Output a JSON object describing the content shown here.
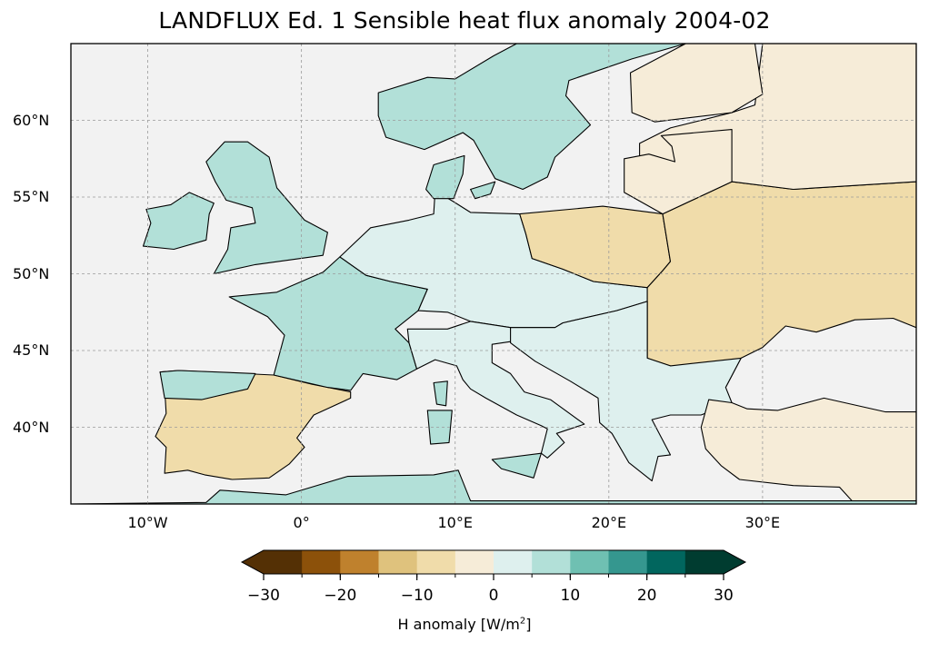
{
  "title": "LANDFLUX Ed. 1 Sensible heat flux anomaly 2004-02",
  "map": {
    "projection": "PlateCarree",
    "lon_range": [
      -15,
      40
    ],
    "lat_range": [
      35,
      65
    ],
    "gridlines": true,
    "ocean_color": "#f2f2f2",
    "coastlines": true,
    "borders": true
  },
  "axes": {
    "x_ticks": [
      {
        "value": -10,
        "label": "10°W"
      },
      {
        "value": 0,
        "label": "0°"
      },
      {
        "value": 10,
        "label": "10°E"
      },
      {
        "value": 20,
        "label": "20°E"
      },
      {
        "value": 30,
        "label": "30°E"
      }
    ],
    "y_ticks": [
      {
        "value": 60,
        "label": "60°N"
      },
      {
        "value": 55,
        "label": "55°N"
      },
      {
        "value": 50,
        "label": "50°N"
      },
      {
        "value": 45,
        "label": "45°N"
      },
      {
        "value": 40,
        "label": "40°N"
      }
    ]
  },
  "colorbar": {
    "label_text": "H anomaly [W/m",
    "label_sup": "2",
    "label_close": "]",
    "range": [
      -30,
      30
    ],
    "extend": "both",
    "levels": [
      -30,
      -25,
      -20,
      -15,
      -10,
      -5,
      0,
      5,
      10,
      15,
      20,
      25,
      30
    ],
    "colors": [
      "#543005",
      "#8c510a",
      "#bf812d",
      "#dfc27d",
      "#f0dcaa",
      "#f6ecd8",
      "#def0ee",
      "#b2e0d8",
      "#6fc0b2",
      "#35978f",
      "#01665e",
      "#003c30"
    ],
    "under_color": "#543005",
    "over_color": "#003c30",
    "ticks": [
      {
        "value": -30,
        "label": "−30"
      },
      {
        "value": -20,
        "label": "−20"
      },
      {
        "value": -10,
        "label": "−10"
      },
      {
        "value": 0,
        "label": "0"
      },
      {
        "value": 10,
        "label": "10"
      },
      {
        "value": 20,
        "label": "20"
      },
      {
        "value": 30,
        "label": "30"
      }
    ]
  },
  "regions": [
    {
      "name": "iberia",
      "level": -10,
      "points": [
        [
          -9.2,
          43.6
        ],
        [
          -8,
          43.7
        ],
        [
          -1.8,
          43.4
        ],
        [
          0.7,
          42.8
        ],
        [
          3.2,
          42.3
        ],
        [
          3.2,
          41.9
        ],
        [
          0.8,
          40.8
        ],
        [
          -0.3,
          39.3
        ],
        [
          0.2,
          38.7
        ],
        [
          -0.8,
          37.6
        ],
        [
          -2.1,
          36.7
        ],
        [
          -4.5,
          36.6
        ],
        [
          -6.3,
          36.9
        ],
        [
          -7.4,
          37.2
        ],
        [
          -8.9,
          37.0
        ],
        [
          -8.8,
          38.7
        ],
        [
          -9.5,
          39.4
        ],
        [
          -8.8,
          40.9
        ],
        [
          -8.9,
          42.6
        ]
      ]
    },
    {
      "name": "iberia-north",
      "level": 5,
      "points": [
        [
          -9.2,
          43.6
        ],
        [
          -8,
          43.7
        ],
        [
          -3,
          43.5
        ],
        [
          -3.5,
          42.5
        ],
        [
          -6.5,
          41.8
        ],
        [
          -8.9,
          41.9
        ]
      ]
    },
    {
      "name": "france",
      "level": 5,
      "points": [
        [
          -4.7,
          48.5
        ],
        [
          -1.6,
          48.8
        ],
        [
          1.4,
          50.1
        ],
        [
          2.5,
          51.1
        ],
        [
          4.2,
          49.9
        ],
        [
          5.8,
          49.5
        ],
        [
          8.2,
          49.0
        ],
        [
          7.6,
          47.6
        ],
        [
          6.1,
          46.4
        ],
        [
          7.0,
          45.5
        ],
        [
          7.5,
          43.8
        ],
        [
          6.2,
          43.1
        ],
        [
          4.0,
          43.5
        ],
        [
          3.2,
          42.4
        ],
        [
          1.7,
          42.6
        ],
        [
          -1.8,
          43.4
        ],
        [
          -1.1,
          46.0
        ],
        [
          -2.2,
          47.2
        ]
      ]
    },
    {
      "name": "uk",
      "level": 5,
      "points": [
        [
          -5.7,
          50.0
        ],
        [
          -3,
          50.6
        ],
        [
          1.4,
          51.2
        ],
        [
          1.7,
          52.7
        ],
        [
          0.2,
          53.5
        ],
        [
          -1.6,
          55.6
        ],
        [
          -2.1,
          57.6
        ],
        [
          -3.5,
          58.6
        ],
        [
          -5,
          58.6
        ],
        [
          -6.2,
          57.3
        ],
        [
          -5.6,
          56.0
        ],
        [
          -4.9,
          54.8
        ],
        [
          -3.2,
          54.3
        ],
        [
          -3,
          53.3
        ],
        [
          -4.6,
          53.0
        ],
        [
          -4.8,
          51.6
        ]
      ]
    },
    {
      "name": "ireland",
      "level": 5,
      "points": [
        [
          -6.2,
          52.2
        ],
        [
          -6.0,
          53.9
        ],
        [
          -5.7,
          54.6
        ],
        [
          -7.3,
          55.3
        ],
        [
          -8.5,
          54.5
        ],
        [
          -10.1,
          54.2
        ],
        [
          -9.8,
          53.3
        ],
        [
          -10.3,
          51.8
        ],
        [
          -8.3,
          51.6
        ]
      ]
    },
    {
      "name": "central-europe",
      "level": 0,
      "points": [
        [
          2.5,
          51.1
        ],
        [
          4.5,
          53.0
        ],
        [
          7,
          53.5
        ],
        [
          8.6,
          53.9
        ],
        [
          8.7,
          55.4
        ],
        [
          9.9,
          54.7
        ],
        [
          11,
          54.0
        ],
        [
          14.2,
          53.9
        ],
        [
          14.6,
          52.6
        ],
        [
          15,
          51.0
        ],
        [
          17,
          50.3
        ],
        [
          19,
          49.5
        ],
        [
          22.5,
          49.1
        ],
        [
          22.5,
          48.2
        ],
        [
          20.5,
          47.6
        ],
        [
          17,
          46.8
        ],
        [
          16.5,
          46.5
        ],
        [
          13.6,
          46.5
        ],
        [
          11,
          46.9
        ],
        [
          9.5,
          47.5
        ],
        [
          7.6,
          47.6
        ],
        [
          8.2,
          49.0
        ],
        [
          5.8,
          49.5
        ],
        [
          4.2,
          49.9
        ]
      ]
    },
    {
      "name": "poland-east",
      "level": -10,
      "points": [
        [
          14.2,
          53.9
        ],
        [
          19.6,
          54.4
        ],
        [
          23.5,
          53.9
        ],
        [
          24,
          50.8
        ],
        [
          23.5,
          50.2
        ],
        [
          22.5,
          49.1
        ],
        [
          19,
          49.5
        ],
        [
          17,
          50.3
        ],
        [
          15,
          51.0
        ],
        [
          14.6,
          52.6
        ]
      ]
    },
    {
      "name": "eastern-europe",
      "level": -10,
      "points": [
        [
          23.5,
          53.9
        ],
        [
          28,
          56.0
        ],
        [
          32,
          55.5
        ],
        [
          40,
          56
        ],
        [
          40,
          46.5
        ],
        [
          38.5,
          47.1
        ],
        [
          36,
          47.0
        ],
        [
          33.5,
          46.2
        ],
        [
          31.5,
          46.6
        ],
        [
          30.0,
          45.2
        ],
        [
          28.6,
          44.5
        ],
        [
          27.6,
          42.6
        ],
        [
          24,
          44
        ],
        [
          22.5,
          44.5
        ],
        [
          22.5,
          48.2
        ],
        [
          22.5,
          49.1
        ],
        [
          23.5,
          50.2
        ],
        [
          24,
          50.8
        ]
      ]
    },
    {
      "name": "russia-north",
      "level": -5,
      "points": [
        [
          22,
          56
        ],
        [
          28,
          56
        ],
        [
          32,
          55.5
        ],
        [
          40,
          56
        ],
        [
          40,
          65
        ],
        [
          30,
          65
        ],
        [
          29.5,
          61
        ],
        [
          28,
          60.5
        ],
        [
          24,
          59.5
        ],
        [
          22,
          58.5
        ]
      ]
    },
    {
      "name": "scandinavia",
      "level": 5,
      "points": [
        [
          5.5,
          58.9
        ],
        [
          8,
          58.1
        ],
        [
          10.5,
          59.2
        ],
        [
          11.2,
          58.7
        ],
        [
          12.6,
          56.2
        ],
        [
          14.4,
          55.5
        ],
        [
          16,
          56.3
        ],
        [
          16.5,
          57.6
        ],
        [
          18.8,
          59.7
        ],
        [
          17.2,
          61.6
        ],
        [
          17.4,
          62.6
        ],
        [
          21.5,
          64
        ],
        [
          25,
          65
        ],
        [
          14,
          65
        ],
        [
          12.5,
          64.2
        ],
        [
          10,
          62.7
        ],
        [
          8.2,
          62.8
        ],
        [
          5.0,
          61.8
        ],
        [
          5.0,
          60.3
        ]
      ]
    },
    {
      "name": "finland",
      "level": -5,
      "points": [
        [
          21.5,
          60.5
        ],
        [
          23,
          59.9
        ],
        [
          28,
          60.5
        ],
        [
          30,
          61.7
        ],
        [
          29.5,
          65
        ],
        [
          25,
          65
        ],
        [
          21.4,
          63.1
        ]
      ]
    },
    {
      "name": "italy",
      "level": 0,
      "points": [
        [
          7.5,
          43.8
        ],
        [
          7.0,
          45.5
        ],
        [
          6.9,
          46.4
        ],
        [
          9.5,
          46.4
        ],
        [
          11,
          46.9
        ],
        [
          13.6,
          46.5
        ],
        [
          13.7,
          45.6
        ],
        [
          12.4,
          45.4
        ],
        [
          12.4,
          44.2
        ],
        [
          13.6,
          43.5
        ],
        [
          14.5,
          42.3
        ],
        [
          16.2,
          41.8
        ],
        [
          18.4,
          40.2
        ],
        [
          16.6,
          39.6
        ],
        [
          17.1,
          39.0
        ],
        [
          16.0,
          38.0
        ],
        [
          15.6,
          38.3
        ],
        [
          16.0,
          39.9
        ],
        [
          15.6,
          40.1
        ],
        [
          14.0,
          40.8
        ],
        [
          12.0,
          41.9
        ],
        [
          11.0,
          42.5
        ],
        [
          10.5,
          43.1
        ],
        [
          10.1,
          44.0
        ],
        [
          8.7,
          44.4
        ]
      ]
    },
    {
      "name": "balkans",
      "level": 0,
      "points": [
        [
          13.6,
          45.5
        ],
        [
          15.2,
          44.3
        ],
        [
          17.5,
          43.0
        ],
        [
          19.3,
          41.9
        ],
        [
          19.4,
          40.3
        ],
        [
          20.2,
          39.6
        ],
        [
          21.3,
          37.7
        ],
        [
          22.8,
          36.5
        ],
        [
          23.2,
          38.1
        ],
        [
          24.0,
          38.2
        ],
        [
          22.8,
          40.5
        ],
        [
          24.0,
          40.8
        ],
        [
          26.0,
          40.8
        ],
        [
          28.0,
          41.6
        ],
        [
          27.6,
          42.6
        ],
        [
          28.6,
          44.5
        ],
        [
          24,
          44
        ],
        [
          22.5,
          44.5
        ],
        [
          22.5,
          48.2
        ],
        [
          20.5,
          47.6
        ],
        [
          17,
          46.8
        ],
        [
          16.5,
          46.5
        ],
        [
          13.6,
          46.5
        ]
      ]
    },
    {
      "name": "turkey",
      "level": -5,
      "points": [
        [
          26.0,
          40.0
        ],
        [
          26.5,
          41.8
        ],
        [
          28.0,
          41.6
        ],
        [
          29.0,
          41.2
        ],
        [
          31,
          41.1
        ],
        [
          34,
          41.9
        ],
        [
          38,
          41.0
        ],
        [
          40,
          41
        ],
        [
          40,
          35
        ],
        [
          36,
          35
        ],
        [
          35,
          36.1
        ],
        [
          32,
          36.2
        ],
        [
          28.5,
          36.6
        ],
        [
          27.3,
          37.5
        ],
        [
          26.3,
          38.6
        ]
      ]
    },
    {
      "name": "sicily",
      "level": 5,
      "points": [
        [
          12.4,
          37.9
        ],
        [
          15.6,
          38.3
        ],
        [
          15.1,
          36.7
        ],
        [
          13.0,
          37.3
        ]
      ]
    },
    {
      "name": "sardinia",
      "level": 5,
      "points": [
        [
          8.2,
          41.1
        ],
        [
          9.8,
          41.1
        ],
        [
          9.6,
          39.0
        ],
        [
          8.4,
          38.9
        ]
      ]
    },
    {
      "name": "corsica",
      "level": 5,
      "points": [
        [
          8.6,
          42.9
        ],
        [
          9.5,
          43.0
        ],
        [
          9.4,
          41.4
        ],
        [
          8.8,
          41.5
        ]
      ]
    },
    {
      "name": "north-africa",
      "level": 5,
      "points": [
        [
          -15,
          35
        ],
        [
          40,
          35
        ],
        [
          40,
          35.2
        ],
        [
          11,
          35.2
        ],
        [
          10.2,
          37.2
        ],
        [
          8.6,
          36.9
        ],
        [
          3,
          36.8
        ],
        [
          -1,
          35.6
        ],
        [
          -5.3,
          35.9
        ],
        [
          -6.2,
          35.1
        ]
      ]
    },
    {
      "name": "denmark",
      "level": 5,
      "points": [
        [
          8.1,
          55.5
        ],
        [
          8.6,
          57.1
        ],
        [
          10.6,
          57.7
        ],
        [
          10.5,
          56.5
        ],
        [
          9.9,
          54.9
        ],
        [
          8.6,
          54.9
        ]
      ]
    },
    {
      "name": "zealand",
      "level": 5,
      "points": [
        [
          11.0,
          55.5
        ],
        [
          12.6,
          56.0
        ],
        [
          12.3,
          55.2
        ],
        [
          11.3,
          54.9
        ]
      ]
    },
    {
      "name": "baltics",
      "level": -5,
      "points": [
        [
          21.0,
          56.0
        ],
        [
          21.0,
          57.5
        ],
        [
          22.6,
          57.8
        ],
        [
          24.3,
          57.3
        ],
        [
          24.1,
          58.3
        ],
        [
          23.4,
          59.0
        ],
        [
          28.0,
          59.4
        ],
        [
          28,
          56
        ],
        [
          23.5,
          53.9
        ],
        [
          21.0,
          55.3
        ]
      ]
    }
  ]
}
